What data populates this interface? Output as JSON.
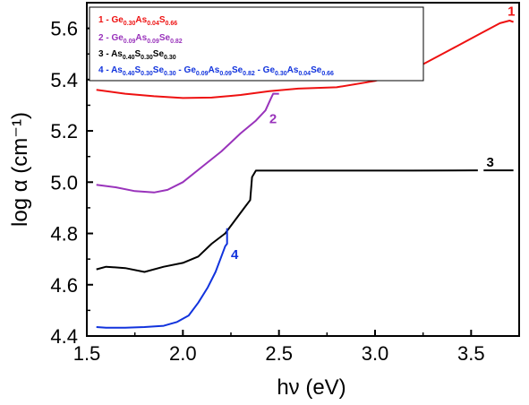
{
  "chart_data": {
    "type": "line",
    "xlabel": "hν (eV)",
    "ylabel": "log α (cm⁻¹)",
    "xlim": [
      1.5,
      3.75
    ],
    "ylim": [
      4.4,
      5.7
    ],
    "x_ticks": [
      "1.5",
      "2.0",
      "2.5",
      "3.0",
      "3.5"
    ],
    "y_ticks": [
      "4.4",
      "4.6",
      "4.8",
      "5.0",
      "5.2",
      "5.4",
      "5.6"
    ],
    "grid": false,
    "legend_position": "top-left",
    "legend": [
      {
        "number": "1",
        "parts": [
          [
            "Ge",
            "0.30"
          ],
          [
            "As",
            "0.04"
          ],
          [
            "S",
            "0.66"
          ]
        ],
        "color": "#ee1111"
      },
      {
        "number": "2",
        "parts": [
          [
            "Ge",
            "0.09"
          ],
          [
            "As",
            "0.09"
          ],
          [
            "Se",
            "0.82"
          ]
        ],
        "color": "#9933bb"
      },
      {
        "number": "3",
        "parts": [
          [
            "As",
            "0.40"
          ],
          [
            "S",
            "0.30"
          ],
          [
            "Se",
            "0.30"
          ]
        ],
        "color": "#000000"
      },
      {
        "number": "4",
        "parts": [
          [
            "As",
            "0.40"
          ],
          [
            "S",
            "0.30"
          ],
          [
            "Se",
            "0.30"
          ],
          [
            " - Ge",
            "0.09"
          ],
          [
            "As",
            "0.09"
          ],
          [
            "Se",
            "0.82"
          ],
          [
            " - Ge",
            "0.30"
          ],
          [
            "As",
            "0.04"
          ],
          [
            "Se",
            "0.66"
          ]
        ],
        "color": "#1133dd"
      }
    ],
    "series": [
      {
        "label": "1",
        "color": "#ee1111",
        "label_at": [
          3.69,
          5.65
        ],
        "x": [
          1.55,
          1.7,
          1.85,
          2.0,
          2.15,
          2.3,
          2.45,
          2.6,
          2.8,
          3.0,
          3.2,
          3.4,
          3.55,
          3.65,
          3.7,
          3.72
        ],
        "y": [
          5.36,
          5.345,
          5.335,
          5.328,
          5.33,
          5.34,
          5.355,
          5.365,
          5.37,
          5.395,
          5.44,
          5.52,
          5.58,
          5.62,
          5.63,
          5.625
        ]
      },
      {
        "label": "2",
        "color": "#9933bb",
        "label_at": [
          2.45,
          5.23
        ],
        "x": [
          1.55,
          1.65,
          1.75,
          1.85,
          1.92,
          2.0,
          2.1,
          2.2,
          2.3,
          2.38,
          2.43,
          2.46,
          2.47,
          2.5
        ],
        "y": [
          4.99,
          4.98,
          4.965,
          4.96,
          4.97,
          5.0,
          5.06,
          5.12,
          5.19,
          5.24,
          5.28,
          5.33,
          5.345,
          5.345
        ]
      },
      {
        "label": "3",
        "color": "#000000",
        "label_at": [
          3.58,
          5.06
        ],
        "x": [
          1.55,
          1.6,
          1.7,
          1.8,
          1.9,
          2.0,
          2.08,
          2.15,
          2.22,
          2.28,
          2.32,
          2.35,
          2.36,
          2.38,
          2.5,
          2.8,
          3.2,
          3.55,
          3.72
        ],
        "y": [
          4.66,
          4.67,
          4.665,
          4.65,
          4.67,
          4.685,
          4.71,
          4.76,
          4.8,
          4.86,
          4.9,
          4.93,
          5.02,
          5.045,
          5.045,
          5.045,
          5.045,
          5.046,
          5.046
        ]
      },
      {
        "label": "4",
        "color": "#1133dd",
        "label_at": [
          2.25,
          4.7
        ],
        "x": [
          1.55,
          1.6,
          1.7,
          1.8,
          1.9,
          1.97,
          2.03,
          2.08,
          2.13,
          2.17,
          2.2,
          2.22,
          2.23,
          2.23
        ],
        "y": [
          4.435,
          4.432,
          4.432,
          4.435,
          4.44,
          4.455,
          4.48,
          4.53,
          4.59,
          4.65,
          4.71,
          4.75,
          4.76,
          4.82
        ]
      }
    ]
  }
}
